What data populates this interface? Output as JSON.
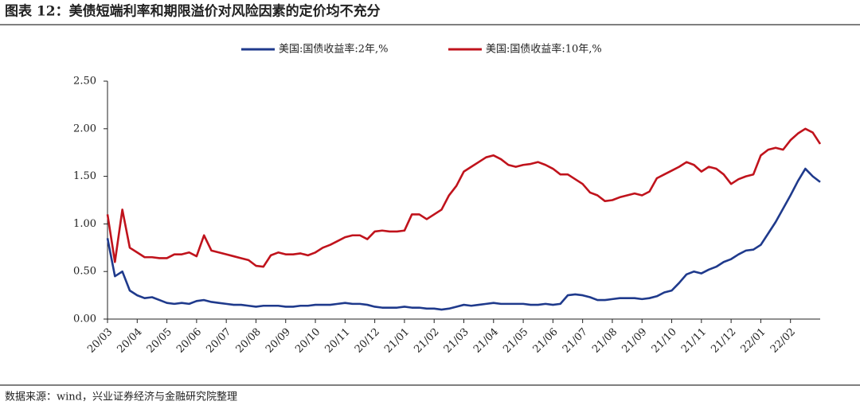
{
  "chart_data": {
    "type": "line",
    "title": "图表 12：美债短端利率和期限溢价对风险因素的定价均不充分",
    "source": "数据来源：wind，兴业证券经济与金融研究院整理",
    "categories": [
      "20/03",
      null,
      null,
      null,
      "20/04",
      null,
      null,
      null,
      "20/05",
      null,
      null,
      null,
      "20/06",
      null,
      null,
      null,
      "20/07",
      null,
      null,
      null,
      "20/08",
      null,
      null,
      null,
      "20/09",
      null,
      null,
      null,
      "20/10",
      null,
      null,
      null,
      "20/11",
      null,
      null,
      null,
      "20/12",
      null,
      null,
      null,
      "21/01",
      null,
      null,
      null,
      "21/02",
      null,
      null,
      null,
      "21/03",
      null,
      null,
      null,
      "21/04",
      null,
      null,
      null,
      "21/05",
      null,
      null,
      null,
      "21/06",
      null,
      null,
      null,
      "21/07",
      null,
      null,
      null,
      "21/08",
      null,
      null,
      null,
      "21/09",
      null,
      null,
      null,
      "21/10",
      null,
      null,
      null,
      "21/11",
      null,
      null,
      null,
      "21/12",
      null,
      null,
      null,
      "22/01",
      null,
      null,
      null,
      "22/02",
      null,
      null,
      null,
      null
    ],
    "series": [
      {
        "name": "美国:国债收益率:2年,%",
        "color": "#1f3a8c",
        "values": [
          0.85,
          0.45,
          0.5,
          0.3,
          0.25,
          0.22,
          0.23,
          0.2,
          0.17,
          0.16,
          0.17,
          0.16,
          0.19,
          0.2,
          0.18,
          0.17,
          0.16,
          0.15,
          0.15,
          0.14,
          0.13,
          0.14,
          0.14,
          0.14,
          0.13,
          0.13,
          0.14,
          0.14,
          0.15,
          0.15,
          0.15,
          0.16,
          0.17,
          0.16,
          0.16,
          0.15,
          0.13,
          0.12,
          0.12,
          0.12,
          0.13,
          0.12,
          0.12,
          0.11,
          0.11,
          0.1,
          0.11,
          0.13,
          0.15,
          0.14,
          0.15,
          0.16,
          0.17,
          0.16,
          0.16,
          0.16,
          0.16,
          0.15,
          0.15,
          0.16,
          0.15,
          0.16,
          0.25,
          0.26,
          0.25,
          0.23,
          0.2,
          0.2,
          0.21,
          0.22,
          0.22,
          0.22,
          0.21,
          0.22,
          0.24,
          0.28,
          0.3,
          0.38,
          0.47,
          0.5,
          0.48,
          0.52,
          0.55,
          0.6,
          0.63,
          0.68,
          0.72,
          0.73,
          0.78,
          0.9,
          1.02,
          1.16,
          1.3,
          1.45,
          1.58,
          1.5,
          1.44
        ]
      },
      {
        "name": "美国:国债收益率:10年,%",
        "color": "#c0131c",
        "values": [
          1.1,
          0.6,
          1.15,
          0.75,
          0.7,
          0.65,
          0.65,
          0.64,
          0.64,
          0.68,
          0.68,
          0.7,
          0.66,
          0.88,
          0.72,
          0.7,
          0.68,
          0.66,
          0.64,
          0.62,
          0.56,
          0.55,
          0.67,
          0.7,
          0.68,
          0.68,
          0.69,
          0.67,
          0.7,
          0.75,
          0.78,
          0.82,
          0.86,
          0.88,
          0.88,
          0.84,
          0.92,
          0.93,
          0.92,
          0.92,
          0.93,
          1.1,
          1.1,
          1.05,
          1.1,
          1.15,
          1.3,
          1.4,
          1.55,
          1.6,
          1.65,
          1.7,
          1.72,
          1.68,
          1.62,
          1.6,
          1.62,
          1.63,
          1.65,
          1.62,
          1.58,
          1.52,
          1.52,
          1.47,
          1.42,
          1.33,
          1.3,
          1.24,
          1.25,
          1.28,
          1.3,
          1.32,
          1.3,
          1.34,
          1.48,
          1.52,
          1.56,
          1.6,
          1.65,
          1.62,
          1.55,
          1.6,
          1.58,
          1.52,
          1.42,
          1.47,
          1.5,
          1.52,
          1.72,
          1.78,
          1.8,
          1.78,
          1.88,
          1.95,
          2.0,
          1.96,
          1.84
        ]
      }
    ],
    "ylim": [
      0,
      2.5
    ],
    "yticks": [
      {
        "value": 0,
        "label": "0.00"
      },
      {
        "value": 0.5,
        "label": "0.50"
      },
      {
        "value": 1,
        "label": "1.00"
      },
      {
        "value": 1.5,
        "label": "1.50"
      },
      {
        "value": 2,
        "label": "2.00"
      },
      {
        "value": 2.5,
        "label": "2.50"
      }
    ]
  }
}
